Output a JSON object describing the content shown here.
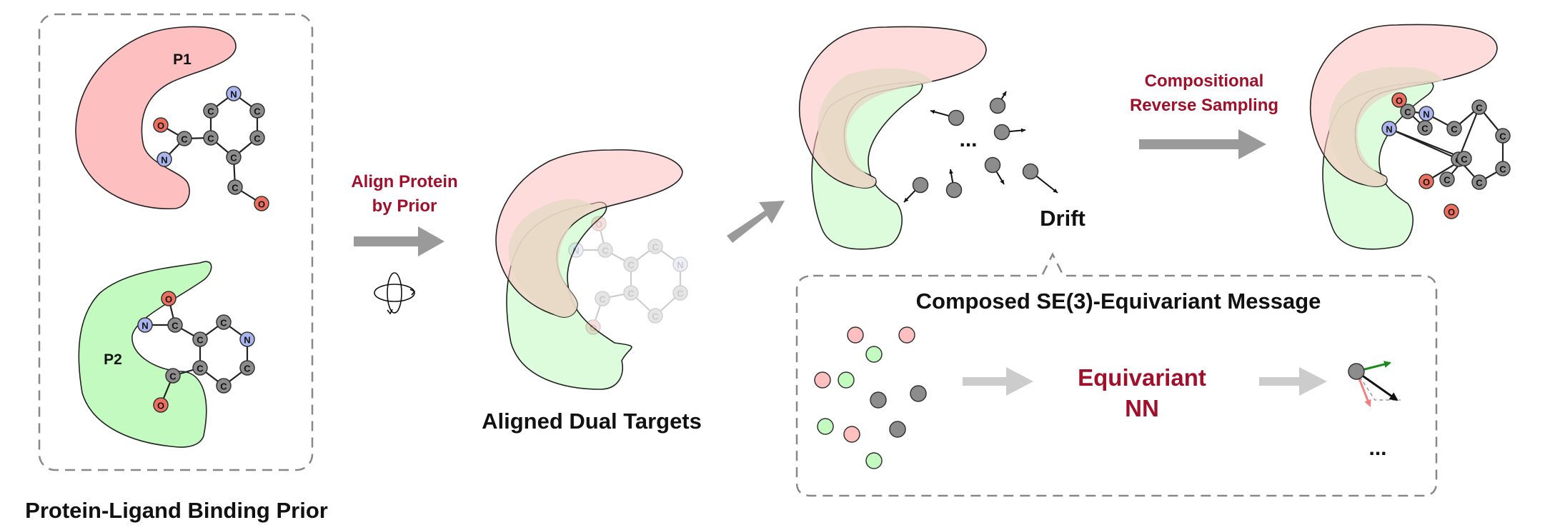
{
  "colors": {
    "pocket_p1": "#fdbfbf",
    "pocket_p2": "#c2fac0",
    "carbon": "#8c8c8c",
    "oxygen": "#ef6f5f",
    "nitrogen": "#aab4ee",
    "accent_red": "#a0102a",
    "arrow_gray": "#9a9a9a",
    "arrow_light": "#cccccc"
  },
  "prior": {
    "caption": "Protein-Ligand Binding Prior",
    "p1_label": "P1",
    "p2_label": "P2"
  },
  "atoms": {
    "carbon": "C",
    "nitrogen": "N",
    "oxygen": "O"
  },
  "align": {
    "label_line1": "Align Protein",
    "label_line2": "by Prior",
    "rotation_icon": "rotation-icon"
  },
  "aligned": {
    "caption": "Aligned Dual Targets"
  },
  "drift": {
    "label": "Drift",
    "ellipsis": "..."
  },
  "sampling": {
    "label_line1": "Compositional",
    "label_line2": "Reverse Sampling"
  },
  "message": {
    "title": "Composed SE(3)-Equivariant Message",
    "nn_line1": "Equivariant",
    "nn_line2": "NN",
    "ellipsis": "..."
  }
}
